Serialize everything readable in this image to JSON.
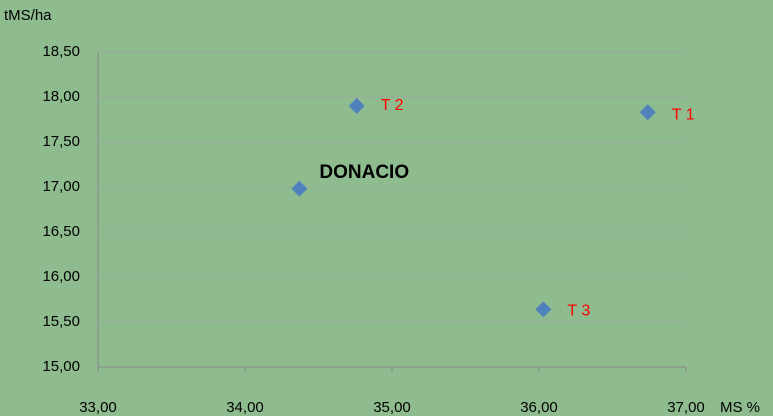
{
  "chart_data": {
    "type": "scatter",
    "x_label": "MS %",
    "y_label": "tMS/ha",
    "xlim": [
      33,
      37
    ],
    "xticks": [
      {
        "value": 33,
        "label": "33,00"
      },
      {
        "value": 34,
        "label": "34,00"
      },
      {
        "value": 35,
        "label": "35,00"
      },
      {
        "value": 36,
        "label": "36,00"
      },
      {
        "value": 37,
        "label": "37,00"
      }
    ],
    "ylim": [
      15,
      18.5
    ],
    "yticks": [
      {
        "value": 15,
        "label": "15,00"
      },
      {
        "value": 15.5,
        "label": "15,50"
      },
      {
        "value": 16,
        "label": "16,00"
      },
      {
        "value": 16.5,
        "label": "16,50"
      },
      {
        "value": 17,
        "label": "17,00"
      },
      {
        "value": 17.5,
        "label": "17,50"
      },
      {
        "value": 18,
        "label": "18,00"
      },
      {
        "value": 18.5,
        "label": "18,50"
      }
    ],
    "grid": true,
    "series": [
      {
        "name": "DONACIO",
        "color": "#4f81bd",
        "label_color": "#000000",
        "x": [
          34.37
        ],
        "values": [
          16.98
        ]
      },
      {
        "name": "T 2",
        "color": "#4f81bd",
        "label_color": "#ff0000",
        "x": [
          34.76
        ],
        "values": [
          17.9
        ]
      },
      {
        "name": "T 1",
        "color": "#4f81bd",
        "label_color": "#ff0000",
        "x": [
          36.74
        ],
        "values": [
          17.83
        ]
      },
      {
        "name": "T 3",
        "color": "#4f81bd",
        "label_color": "#ff0000",
        "x": [
          36.03
        ],
        "values": [
          15.64
        ]
      }
    ]
  }
}
